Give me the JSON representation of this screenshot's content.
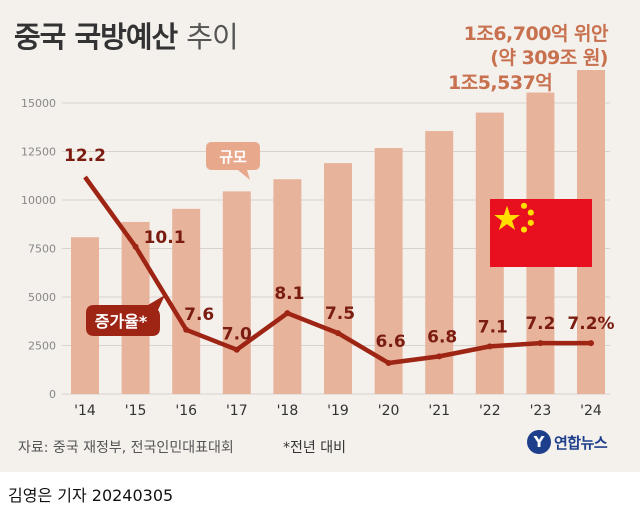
{
  "header": {
    "title_main": "중국 국방예산",
    "title_sub": "추이"
  },
  "annotations": {
    "top_line1": "1조6,700억 위안",
    "top_line2": "(약 309조 원)",
    "second": "1조5,537억"
  },
  "labels": {
    "scale_tag": "규모",
    "rate_tag": "증가율*"
  },
  "footer": {
    "source": "자료: 중국 재정부, 전국인민대표대회",
    "note": "*전년 대비",
    "logo_text": "연합뉴스",
    "byline": "김영은 기자  20240305"
  },
  "colors": {
    "bar": "#e8b39b",
    "line": "#9e2414",
    "background": "#f4f0ec",
    "annotation": "#c8714f"
  },
  "chart_data": {
    "type": "bar",
    "categories": [
      "'14",
      "'15",
      "'16",
      "'17",
      "'18",
      "'19",
      "'20",
      "'21",
      "'22",
      "'23",
      "'24"
    ],
    "series": [
      {
        "name": "규모",
        "unit": "억 위안",
        "values": [
          8082,
          8869,
          9544,
          10444,
          11070,
          11899,
          12680,
          13553,
          14505,
          15537,
          16700
        ]
      },
      {
        "name": "증가율*",
        "unit": "%",
        "values": [
          12.2,
          10.1,
          7.6,
          7.0,
          8.1,
          7.5,
          6.6,
          6.8,
          7.1,
          7.2,
          7.2
        ]
      }
    ],
    "value_labels": [
      "12.2",
      "10.1",
      "7.6",
      "7.0",
      "8.1",
      "7.5",
      "6.6",
      "6.8",
      "7.1",
      "7.2",
      "7.2%"
    ],
    "yticks": [
      "0",
      "2500",
      "5000",
      "7500",
      "10000",
      "12500",
      "15000"
    ],
    "ylim": [
      0,
      16700
    ]
  }
}
